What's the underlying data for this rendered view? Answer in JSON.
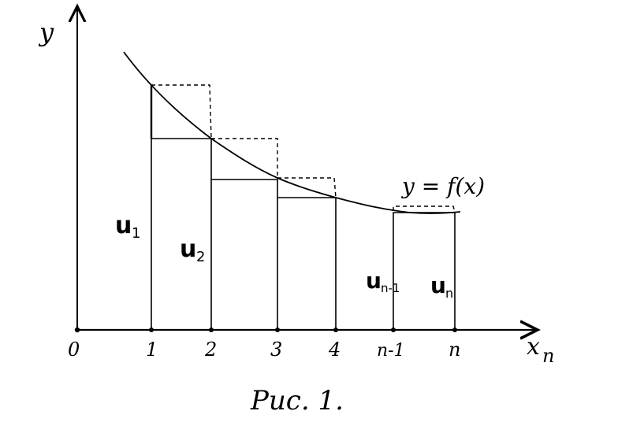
{
  "axes": {
    "y_label": "y",
    "x_label": "x",
    "x_label_sub": "n",
    "origin_label": "0"
  },
  "ticks": [
    "1",
    "2",
    "3",
    "4",
    "n-1",
    "n"
  ],
  "function_label": "y = f(x)",
  "terms": [
    {
      "letter": "u",
      "sub": "1"
    },
    {
      "letter": "u",
      "sub": "2"
    },
    {
      "letter": "u",
      "sub": "n-1"
    },
    {
      "letter": "u",
      "sub": "n"
    }
  ],
  "caption": "Рис. 1."
}
